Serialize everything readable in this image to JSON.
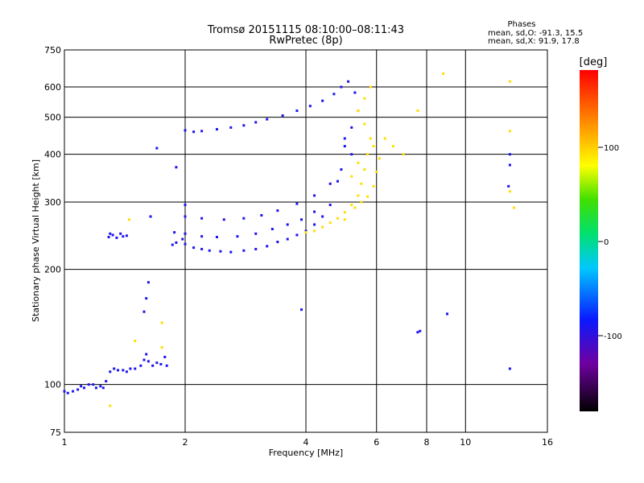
{
  "header": {
    "title_line1": "Tromsø 20151115 08:10:00–08:11:43",
    "title_line2": "RwPretec (8p)",
    "stats_title": "Phases",
    "stats_line1": "mean, sd,O: -91.3, 15.5",
    "stats_line2": "mean, sd,X:  91.9, 17.8"
  },
  "colorbar": {
    "unit_label": "[deg]",
    "ticks": [
      "100",
      "0",
      "-100"
    ],
    "range": [
      -180,
      180
    ]
  },
  "chart_data": {
    "type": "scatter",
    "xlabel": "Frequency [MHz]",
    "ylabel": "Stationary phase Virtual Height [km]",
    "x_scale": "log",
    "y_scale": "log",
    "xlim": [
      1,
      16
    ],
    "ylim": [
      75,
      750
    ],
    "grid": true,
    "x_tick_labels": [
      "1",
      "2",
      "4",
      "6",
      "8",
      "10",
      "16"
    ],
    "y_tick_labels": [
      "75",
      "100",
      "200",
      "300",
      "400",
      "500",
      "600",
      "750"
    ],
    "series": [
      {
        "trace": "O-mode",
        "phase_mean_deg": -91.3,
        "points": [
          [
            1.0,
            96
          ],
          [
            1.02,
            95
          ],
          [
            1.05,
            96
          ],
          [
            1.08,
            97
          ],
          [
            1.1,
            99
          ],
          [
            1.12,
            98
          ],
          [
            1.15,
            100
          ],
          [
            1.18,
            100
          ],
          [
            1.2,
            98
          ],
          [
            1.23,
            99
          ],
          [
            1.25,
            98
          ],
          [
            1.27,
            102
          ],
          [
            1.3,
            108
          ],
          [
            1.33,
            110
          ],
          [
            1.36,
            109
          ],
          [
            1.4,
            109
          ],
          [
            1.43,
            108
          ],
          [
            1.46,
            110
          ],
          [
            1.5,
            110
          ],
          [
            1.55,
            112
          ],
          [
            1.58,
            116
          ],
          [
            1.6,
            120
          ],
          [
            1.62,
            115
          ],
          [
            1.66,
            112
          ],
          [
            1.7,
            114
          ],
          [
            1.74,
            113
          ],
          [
            1.78,
            118
          ],
          [
            1.8,
            112
          ],
          [
            1.29,
            243
          ],
          [
            1.3,
            248
          ],
          [
            1.32,
            246
          ],
          [
            1.35,
            242
          ],
          [
            1.38,
            248
          ],
          [
            1.4,
            244
          ],
          [
            1.43,
            245
          ],
          [
            1.58,
            155
          ],
          [
            1.6,
            168
          ],
          [
            1.62,
            185
          ],
          [
            1.64,
            275
          ],
          [
            1.7,
            415
          ],
          [
            1.9,
            370
          ],
          [
            1.97,
            240
          ],
          [
            2.0,
            295
          ],
          [
            1.86,
            232
          ],
          [
            1.9,
            235
          ],
          [
            2.0,
            233
          ],
          [
            2.1,
            228
          ],
          [
            2.2,
            226
          ],
          [
            2.3,
            224
          ],
          [
            2.45,
            223
          ],
          [
            2.6,
            222
          ],
          [
            2.8,
            224
          ],
          [
            3.0,
            226
          ],
          [
            3.2,
            230
          ],
          [
            3.4,
            236
          ],
          [
            3.6,
            240
          ],
          [
            3.8,
            246
          ],
          [
            4.0,
            252
          ],
          [
            4.2,
            262
          ],
          [
            4.4,
            275
          ],
          [
            4.6,
            295
          ],
          [
            4.8,
            340
          ],
          [
            5.0,
            420
          ],
          [
            1.88,
            250
          ],
          [
            2.0,
            248
          ],
          [
            2.2,
            244
          ],
          [
            2.4,
            243
          ],
          [
            2.7,
            244
          ],
          [
            3.0,
            248
          ],
          [
            3.3,
            255
          ],
          [
            3.6,
            262
          ],
          [
            3.9,
            270
          ],
          [
            4.2,
            283
          ],
          [
            2.0,
            275
          ],
          [
            2.2,
            272
          ],
          [
            2.5,
            270
          ],
          [
            2.8,
            272
          ],
          [
            3.1,
            277
          ],
          [
            3.4,
            285
          ],
          [
            3.8,
            297
          ],
          [
            4.2,
            312
          ],
          [
            4.6,
            335
          ],
          [
            4.9,
            365
          ],
          [
            2.0,
            462
          ],
          [
            2.1,
            458
          ],
          [
            2.2,
            460
          ],
          [
            2.4,
            465
          ],
          [
            2.6,
            470
          ],
          [
            2.8,
            476
          ],
          [
            3.0,
            485
          ],
          [
            3.2,
            494
          ],
          [
            3.5,
            505
          ],
          [
            3.8,
            520
          ],
          [
            4.1,
            535
          ],
          [
            4.4,
            552
          ],
          [
            4.7,
            575
          ],
          [
            4.9,
            600
          ],
          [
            5.1,
            620
          ],
          [
            5.3,
            580
          ],
          [
            5.4,
            520
          ],
          [
            5.2,
            470
          ],
          [
            5.0,
            440
          ],
          [
            5.2,
            400
          ],
          [
            3.9,
            157
          ],
          [
            7.6,
            137
          ],
          [
            7.7,
            138
          ],
          [
            9.0,
            153
          ],
          [
            12.9,
            110
          ],
          [
            12.9,
            375
          ],
          [
            12.8,
            330
          ],
          [
            12.9,
            400
          ]
        ]
      },
      {
        "trace": "X-mode",
        "phase_mean_deg": 91.9,
        "points": [
          [
            4.0,
            250
          ],
          [
            4.2,
            252
          ],
          [
            4.4,
            258
          ],
          [
            4.6,
            265
          ],
          [
            4.8,
            272
          ],
          [
            5.0,
            282
          ],
          [
            5.2,
            295
          ],
          [
            5.4,
            312
          ],
          [
            5.5,
            335
          ],
          [
            5.6,
            365
          ],
          [
            5.7,
            400
          ],
          [
            5.8,
            440
          ],
          [
            5.6,
            480
          ],
          [
            5.4,
            520
          ],
          [
            5.6,
            560
          ],
          [
            5.8,
            600
          ],
          [
            5.0,
            270
          ],
          [
            5.3,
            290
          ],
          [
            5.5,
            300
          ],
          [
            5.7,
            310
          ],
          [
            5.2,
            350
          ],
          [
            5.4,
            380
          ],
          [
            5.9,
            330
          ],
          [
            6.0,
            360
          ],
          [
            5.9,
            420
          ],
          [
            6.1,
            390
          ],
          [
            6.3,
            440
          ],
          [
            6.6,
            420
          ],
          [
            7.0,
            400
          ],
          [
            7.6,
            520
          ],
          [
            8.8,
            650
          ],
          [
            12.9,
            620
          ],
          [
            12.9,
            460
          ],
          [
            12.9,
            320
          ],
          [
            1.45,
            270
          ],
          [
            1.75,
            145
          ],
          [
            1.75,
            125
          ],
          [
            1.3,
            88
          ],
          [
            1.5,
            130
          ],
          [
            13.2,
            290
          ]
        ]
      }
    ]
  }
}
